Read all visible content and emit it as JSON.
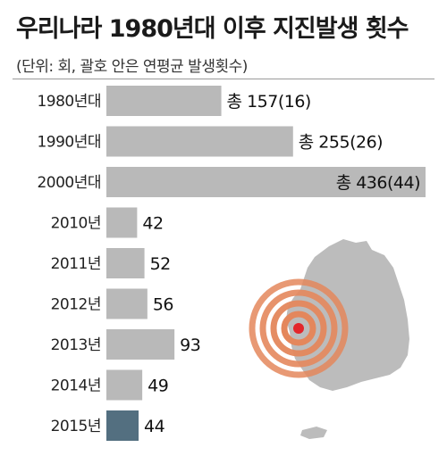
{
  "title": "우리나라 1980년대 이후 지진발생 횟수",
  "subtitle": "(단위: 회, 괄호 안은 연평균 발생횟수)",
  "colors": {
    "bar": "#b9b9b9",
    "bar_highlight": "#536f80",
    "map": "#bcbcbc",
    "ring": "#e4875c",
    "epicenter": "#e3262b"
  },
  "chart_data": {
    "type": "bar",
    "orientation": "horizontal",
    "categories": [
      "1980년대",
      "1990년대",
      "2000년대",
      "2010년",
      "2011년",
      "2012년",
      "2013년",
      "2014년",
      "2015년"
    ],
    "values": [
      157,
      255,
      436,
      42,
      52,
      56,
      93,
      49,
      44
    ],
    "annual_avg": [
      16,
      26,
      44,
      null,
      null,
      null,
      null,
      null,
      null
    ],
    "labels": [
      "총 157(16)",
      "총 255(26)",
      "총 436(44)",
      "42",
      "52",
      "56",
      "93",
      "49",
      "44"
    ],
    "highlight": "2015년",
    "xlim": [
      0,
      436
    ]
  }
}
